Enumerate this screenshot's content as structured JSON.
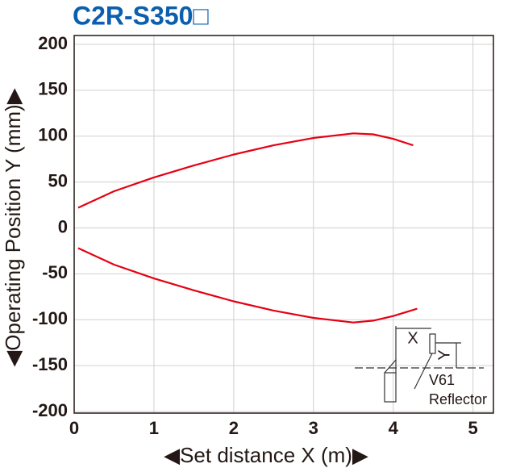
{
  "chart_data": {
    "type": "line",
    "title": "C2R-S350□",
    "x_label": "◀Set distance X (m)▶",
    "y_label": "◀Operating Position Y (mm)▶",
    "xlim": [
      0,
      5.25
    ],
    "xticks": [
      0,
      1,
      2,
      3,
      4,
      5
    ],
    "ylim": [
      -200,
      210
    ],
    "yticks": [
      -200,
      -150,
      -100,
      -50,
      0,
      50,
      100,
      150,
      200
    ],
    "grid": true,
    "series": [
      {
        "color": "#e60012",
        "x": [
          0.05,
          0.5,
          1,
          1.5,
          2,
          2.5,
          3,
          3.5,
          3.75,
          4,
          4.25
        ],
        "values": [
          22,
          40,
          55,
          68,
          80,
          90,
          98,
          103,
          102,
          97,
          90
        ]
      },
      {
        "color": "#e60012",
        "x": [
          0.05,
          0.5,
          1,
          1.5,
          2,
          2.5,
          3,
          3.5,
          3.75,
          4,
          4.3
        ],
        "values": [
          -22,
          -40,
          -55,
          -68,
          -80,
          -90,
          -98,
          -103,
          -101,
          -96,
          -88
        ]
      }
    ],
    "annotations": [
      "X",
      "Y",
      "V61",
      "Reflector"
    ]
  }
}
